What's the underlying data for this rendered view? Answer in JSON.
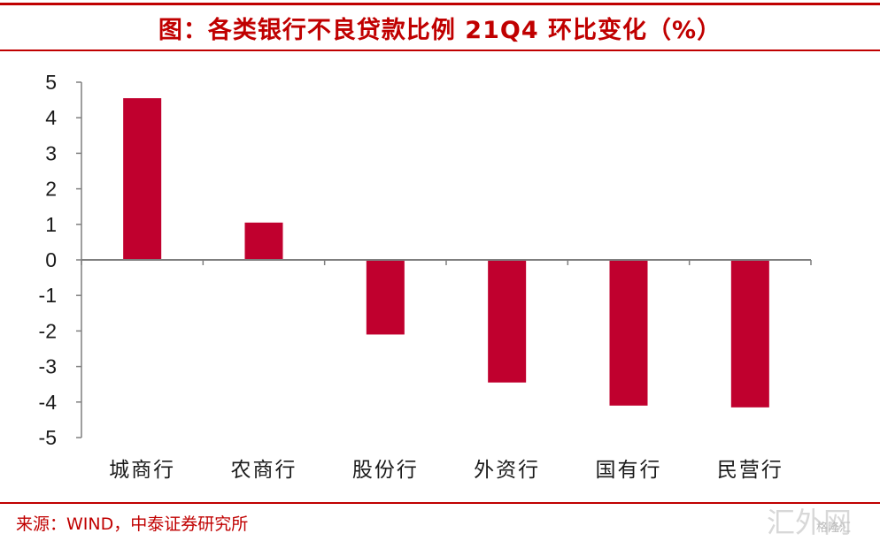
{
  "header": {
    "title": "图：各类银行不良贷款比例 21Q4 环比变化（%）"
  },
  "footer": {
    "source": "来源：WIND，中泰证券研究所"
  },
  "watermark": {
    "text": "汇外网",
    "sub": "格隆汇"
  },
  "colors": {
    "accent": "#c00000",
    "bar": "#c0002e",
    "axis": "#7f7f7f"
  },
  "chart_data": {
    "type": "bar",
    "categories": [
      "城商行",
      "农商行",
      "股份行",
      "外资行",
      "国有行",
      "民营行"
    ],
    "values": [
      4.55,
      1.05,
      -2.1,
      -3.45,
      -4.1,
      -4.15
    ],
    "ylim": [
      -5,
      5
    ],
    "yticks": [
      5,
      4,
      3,
      2,
      1,
      0,
      -1,
      -2,
      -3,
      -4,
      -5
    ],
    "grid": false,
    "legend": "none"
  }
}
